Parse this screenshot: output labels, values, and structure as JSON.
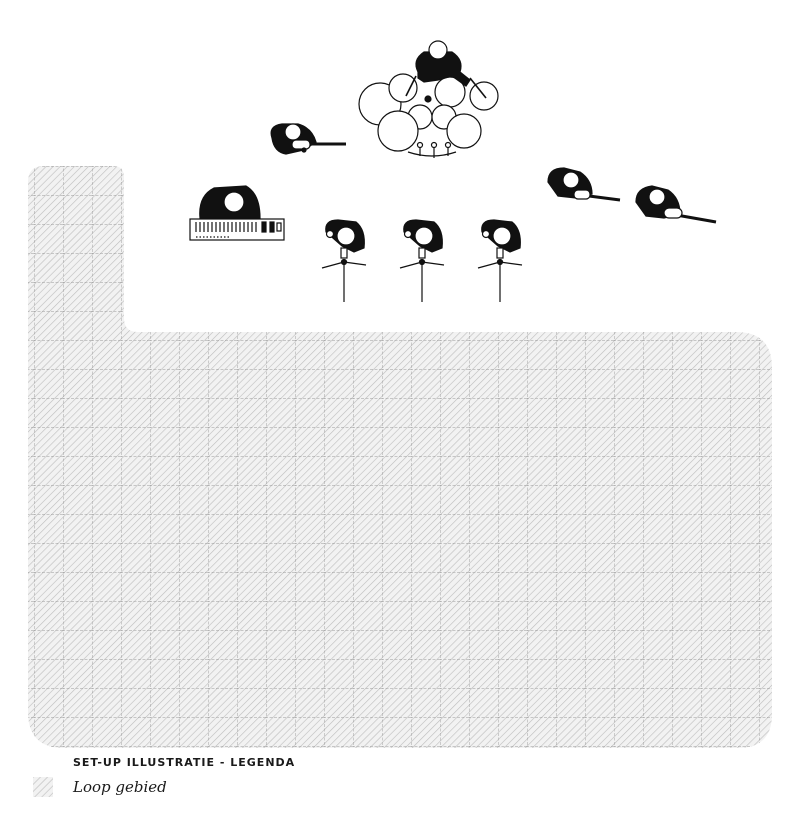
{
  "legend": {
    "title": "SET-UP ILLUSTRATIE - LEGENDA",
    "items": [
      {
        "label": "Loop gebied",
        "pattern": "hatched-grid"
      }
    ]
  },
  "areas": [
    {
      "name": "walking-area",
      "pattern": "hatched-grid",
      "legend_ref": "Loop gebied"
    }
  ],
  "stage_elements": [
    {
      "kind": "drummer",
      "instrument": "drum-kit"
    },
    {
      "kind": "guitarist",
      "instrument": "electric-guitar"
    },
    {
      "kind": "keyboardist",
      "instrument": "keyboard"
    },
    {
      "kind": "vocalist",
      "instrument": "microphone-stand"
    },
    {
      "kind": "vocalist",
      "instrument": "microphone-stand"
    },
    {
      "kind": "vocalist",
      "instrument": "microphone-stand"
    },
    {
      "kind": "guitarist",
      "instrument": "electric-guitar"
    },
    {
      "kind": "bassist",
      "instrument": "bass-guitar"
    }
  ],
  "colors": {
    "ink": "#111111",
    "hatch": "#b8b8b8",
    "grid": "#9a9a9a",
    "area_fill": "#f1f1f1"
  }
}
